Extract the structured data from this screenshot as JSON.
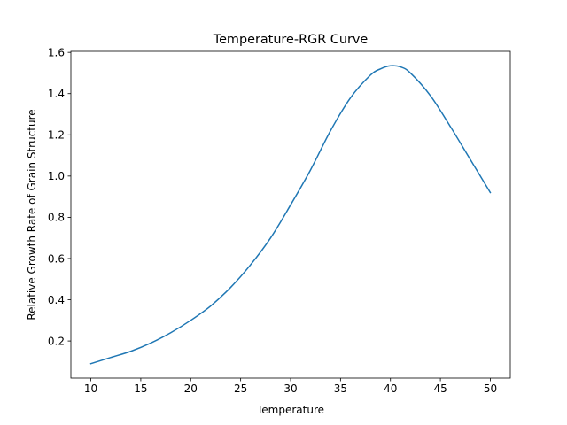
{
  "chart_data": {
    "type": "line",
    "title": "Temperature-RGR Curve",
    "xlabel": "Temperature",
    "ylabel": "Relative Growth Rate of Grain Structure",
    "xlim": [
      8,
      52
    ],
    "ylim": [
      0.02,
      1.605
    ],
    "x_ticks": [
      10,
      15,
      20,
      25,
      30,
      35,
      40,
      45,
      50
    ],
    "y_ticks": [
      0.2,
      0.4,
      0.6,
      0.8,
      1.0,
      1.2,
      1.4,
      1.6
    ],
    "y_tick_labels": [
      "0.2",
      "0.4",
      "0.6",
      "0.8",
      "1.0",
      "1.2",
      "1.4",
      "1.6"
    ],
    "grid": false,
    "series": [
      {
        "color": "#1f77b4",
        "x": [
          10,
          12,
          14,
          16,
          18,
          20,
          22,
          24,
          26,
          28,
          30,
          32,
          34,
          36,
          38,
          39,
          40,
          41,
          42,
          44,
          46,
          48,
          50
        ],
        "y": [
          0.09,
          0.12,
          0.15,
          0.19,
          0.24,
          0.3,
          0.37,
          0.46,
          0.57,
          0.7,
          0.86,
          1.03,
          1.22,
          1.38,
          1.49,
          1.52,
          1.535,
          1.53,
          1.5,
          1.39,
          1.24,
          1.08,
          0.92
        ]
      }
    ]
  }
}
